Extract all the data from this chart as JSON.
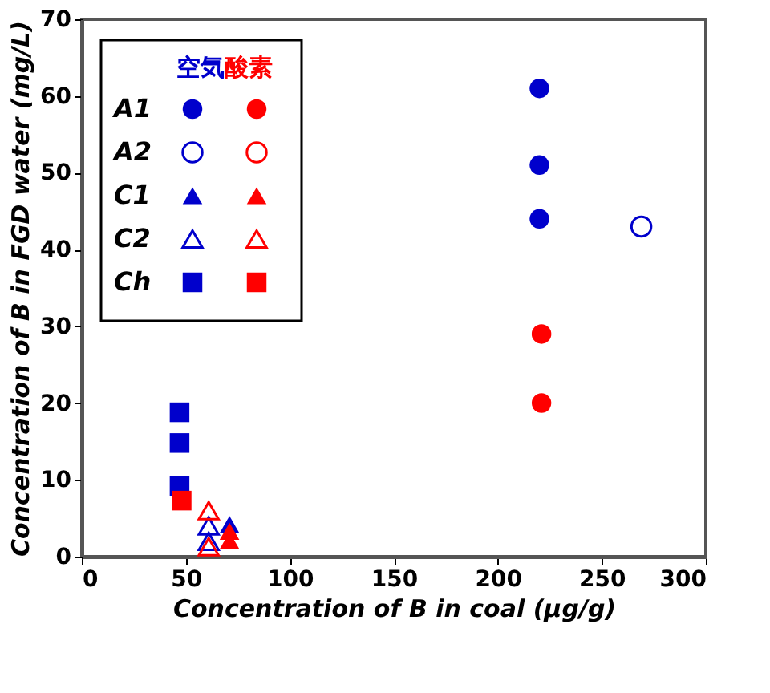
{
  "chart_data": {
    "type": "scatter",
    "xlabel": "Concentration of B in coal (μg/g)",
    "ylabel": "Concentration of B in FGD water (mg/L)",
    "xlim": [
      0,
      300
    ],
    "xticks": [
      0,
      50,
      100,
      150,
      200,
      250,
      300
    ],
    "ylim": [
      0,
      70
    ],
    "yticks": [
      0,
      10,
      20,
      30,
      40,
      50,
      60,
      70
    ],
    "grid": false,
    "legend": "top left",
    "annotations": [
      "空気",
      "酸素"
    ],
    "series": [
      {
        "name": "A1",
        "color": "#0000cc",
        "marker": "circle",
        "x": [
          220,
          220,
          220
        ],
        "values": [
          61,
          51,
          44
        ]
      },
      {
        "color": "#ff0000",
        "marker": "circle",
        "x": [
          221,
          221
        ],
        "values": [
          29,
          20
        ]
      },
      {
        "name": "A2",
        "color": "#0000cc",
        "marker": "circle-open",
        "x": [
          269
        ],
        "values": [
          43
        ]
      },
      {
        "color": "#ff0000",
        "marker": "circle-open"
      },
      {
        "name": "C1",
        "color": "#0000cc",
        "marker": "triangle",
        "x": [
          71
        ],
        "values": [
          4.2
        ]
      },
      {
        "color": "#ff0000",
        "marker": "triangle",
        "x": [
          71,
          71
        ],
        "values": [
          3.3,
          2.1
        ]
      },
      {
        "name": "C2",
        "color": "#0000cc",
        "marker": "triangle-open",
        "x": [
          61,
          61
        ],
        "values": [
          4,
          2
        ]
      },
      {
        "color": "#ff0000",
        "marker": "triangle-open",
        "x": [
          61,
          61
        ],
        "values": [
          6,
          1.3
        ]
      },
      {
        "name": "Ch",
        "color": "#0000cc",
        "marker": "square",
        "x": [
          47,
          47,
          47
        ],
        "values": [
          18.8,
          14.8,
          9.2
        ]
      },
      {
        "color": "#ff0000",
        "marker": "square",
        "x": [
          48
        ],
        "values": [
          7.3
        ]
      }
    ]
  }
}
